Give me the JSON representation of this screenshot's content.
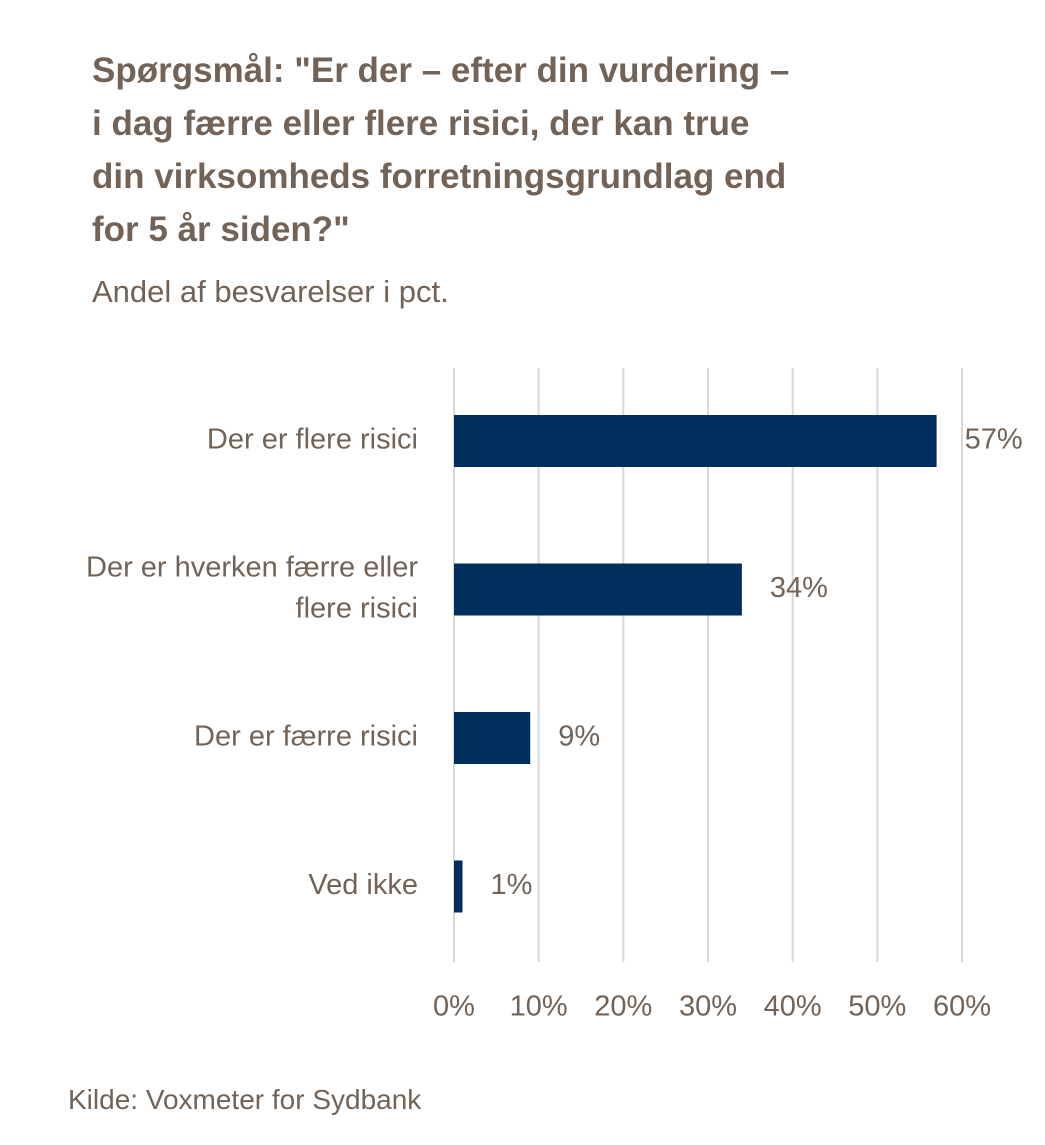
{
  "chart_data": {
    "type": "bar",
    "orientation": "horizontal",
    "title_lines": [
      "Spørgsmål: \"Er der – efter din vurdering –",
      "i dag færre eller flere risici, der kan true",
      "din virksomheds forretningsgrundlag end",
      "for 5 år siden?\""
    ],
    "subtitle": "Andel af besvarelser i pct.",
    "categories": [
      [
        "Der er flere risici"
      ],
      [
        "Der er hverken færre eller",
        "flere risici"
      ],
      [
        "Der er færre risici"
      ],
      [
        "Ved ikke"
      ]
    ],
    "values": [
      57,
      34,
      9,
      1
    ],
    "data_labels": [
      "57%",
      "34%",
      "9%",
      "1%"
    ],
    "xlim": [
      0,
      60
    ],
    "x_ticks": [
      0,
      10,
      20,
      30,
      40,
      50,
      60
    ],
    "x_tick_labels": [
      "0%",
      "10%",
      "20%",
      "30%",
      "40%",
      "50%",
      "60%"
    ],
    "grid": true,
    "legend": "none",
    "colors": {
      "bar": "#002E5D",
      "text": "#736357",
      "grid": "#D9D9D9"
    }
  },
  "source": "Kilde: Voxmeter for Sydbank"
}
